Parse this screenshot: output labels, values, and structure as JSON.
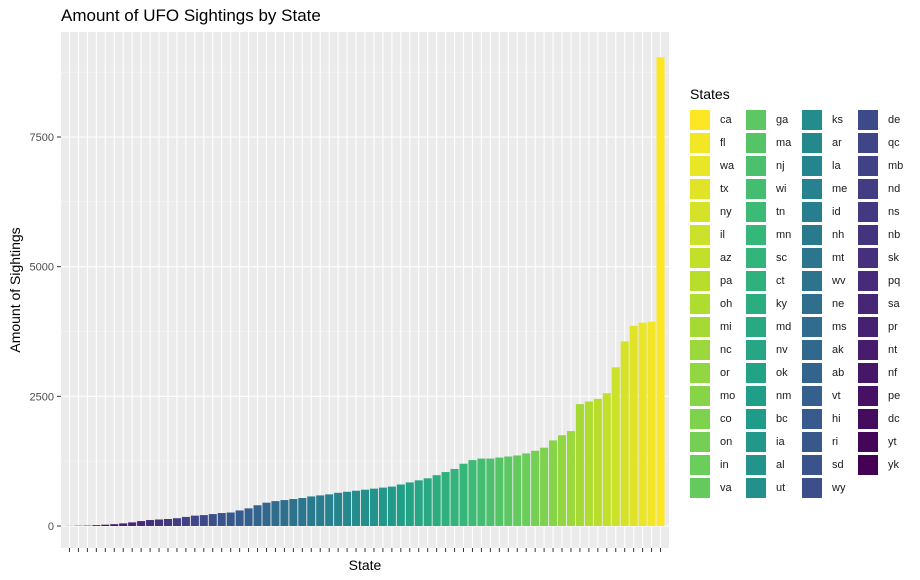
{
  "chart_data": {
    "type": "bar",
    "title": "Amount of UFO Sightings by State",
    "xlabel": "State",
    "ylabel": "Amount of Sightings",
    "ylim": [
      0,
      9500
    ],
    "yticks": [
      0,
      2500,
      5000,
      7500
    ],
    "ytick_labels": [
      "0",
      "2500",
      "5000",
      "7500"
    ],
    "legend_title": "States",
    "legend_position": "right",
    "grid": true,
    "colormap": "viridis",
    "categories": [
      "yk",
      "yt",
      "dc",
      "pe",
      "nf",
      "nt",
      "pr",
      "sa",
      "pq",
      "sk",
      "nb",
      "ns",
      "nd",
      "mb",
      "qc",
      "de",
      "wy",
      "sd",
      "ri",
      "hi",
      "vt",
      "ab",
      "ak",
      "ms",
      "ne",
      "wv",
      "mt",
      "nh",
      "id",
      "me",
      "la",
      "ar",
      "ks",
      "ut",
      "al",
      "ia",
      "bc",
      "nm",
      "ok",
      "nv",
      "md",
      "ky",
      "ct",
      "sc",
      "mn",
      "tn",
      "wi",
      "nj",
      "ma",
      "ga",
      "va",
      "in",
      "on",
      "co",
      "mo",
      "or",
      "nc",
      "mi",
      "oh",
      "pa",
      "az",
      "il",
      "ny",
      "tx",
      "wa",
      "fl",
      "ca"
    ],
    "values": [
      2,
      5,
      7,
      16,
      25,
      35,
      50,
      70,
      95,
      115,
      125,
      135,
      150,
      175,
      200,
      210,
      230,
      250,
      260,
      300,
      340,
      400,
      450,
      480,
      500,
      520,
      540,
      570,
      590,
      610,
      640,
      660,
      680,
      700,
      720,
      740,
      760,
      800,
      840,
      880,
      920,
      980,
      1040,
      1100,
      1200,
      1270,
      1300,
      1300,
      1320,
      1340,
      1360,
      1400,
      1450,
      1510,
      1650,
      1750,
      1830,
      2350,
      2400,
      2450,
      2560,
      3060,
      3560,
      3860,
      3920,
      3940,
      9040
    ],
    "legend_columns": [
      [
        "ca",
        "fl",
        "wa",
        "tx",
        "ny",
        "il",
        "az",
        "pa",
        "oh",
        "mi",
        "nc",
        "or",
        "mo",
        "co",
        "on",
        "in",
        "va"
      ],
      [
        "ga",
        "ma",
        "nj",
        "wi",
        "tn",
        "mn",
        "sc",
        "ct",
        "ky",
        "md",
        "nv",
        "ok",
        "nm",
        "bc",
        "ia",
        "al",
        "ut"
      ],
      [
        "ks",
        "ar",
        "la",
        "me",
        "id",
        "nh",
        "mt",
        "wv",
        "ne",
        "ms",
        "ak",
        "ab",
        "vt",
        "hi",
        "ri",
        "sd",
        "wy"
      ],
      [
        "de",
        "qc",
        "mb",
        "nd",
        "ns",
        "nb",
        "sk",
        "pq",
        "sa",
        "pr",
        "nt",
        "nf",
        "pe",
        "dc",
        "yt",
        "yk"
      ]
    ]
  }
}
